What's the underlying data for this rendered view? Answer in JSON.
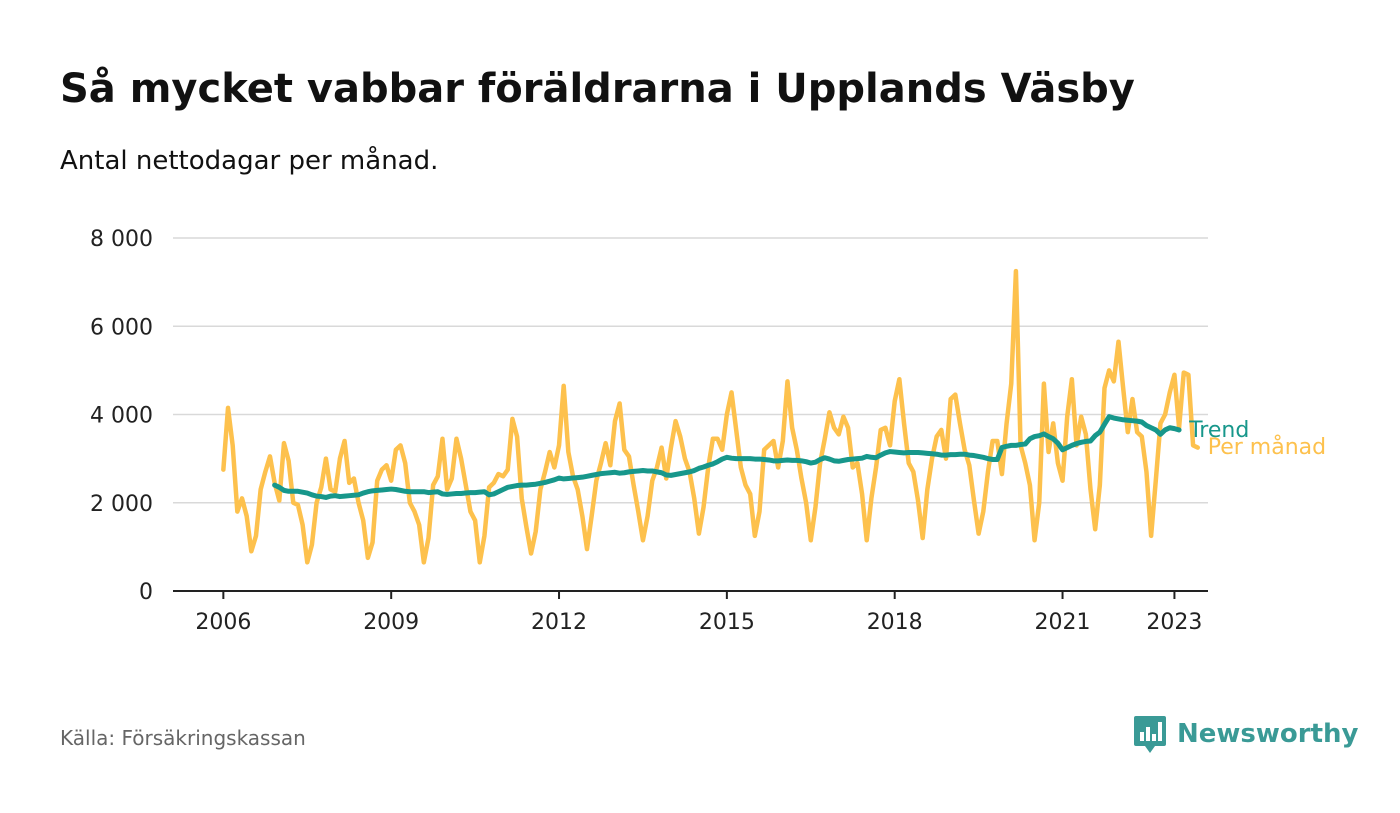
{
  "title": "Så mycket vabbar föräldrarna i Upplands Väsby",
  "subtitle": "Antal nettodagar per månad.",
  "source": "Källa: Försäkringskassan",
  "brand": "Newsworthy",
  "colors": {
    "monthly": "#fdc14d",
    "trend": "#17978b",
    "grid": "#d9d9d9",
    "axis": "#222222",
    "brand": "#3a9a96"
  },
  "chart_data": {
    "type": "line",
    "title": "Så mycket vabbar föräldrarna i Upplands Väsby",
    "subtitle": "Antal nettodagar per månad.",
    "xlabel": "",
    "ylabel": "",
    "x_start": "2006-01",
    "x_step": "month",
    "xlim": [
      2005.1,
      2023.6
    ],
    "ylim": [
      0,
      8000
    ],
    "yticks": [
      0,
      2000,
      4000,
      6000,
      8000
    ],
    "ytick_labels": [
      "0",
      "2 000",
      "4 000",
      "6 000",
      "8 000"
    ],
    "xticks": [
      2006,
      2009,
      2012,
      2015,
      2018,
      2021,
      2023
    ],
    "xtick_labels": [
      "2006",
      "2009",
      "2012",
      "2015",
      "2018",
      "2021",
      "2023"
    ],
    "grid": true,
    "series": [
      {
        "name": "Per månad",
        "x_start": "2006-01",
        "values": [
          2750,
          4150,
          3300,
          1800,
          2100,
          1700,
          900,
          1250,
          2300,
          2700,
          3050,
          2450,
          2050,
          3350,
          2950,
          2000,
          1950,
          1500,
          650,
          1050,
          2000,
          2350,
          3000,
          2300,
          2250,
          3000,
          3400,
          2450,
          2550,
          2000,
          1600,
          750,
          1100,
          2500,
          2750,
          2850,
          2500,
          3200,
          3300,
          2900,
          2000,
          1800,
          1500,
          650,
          1200,
          2400,
          2600,
          3450,
          2300,
          2550,
          3450,
          3000,
          2400,
          1800,
          1600,
          650,
          1250,
          2350,
          2450,
          2650,
          2600,
          2750,
          3900,
          3500,
          2100,
          1450,
          850,
          1350,
          2300,
          2700,
          3150,
          2800,
          3300,
          4650,
          3150,
          2600,
          2300,
          1700,
          950,
          1700,
          2500,
          2900,
          3350,
          2850,
          3850,
          4250,
          3200,
          3050,
          2400,
          1800,
          1150,
          1700,
          2500,
          2800,
          3250,
          2550,
          3250,
          3850,
          3500,
          3000,
          2700,
          2100,
          1300,
          1900,
          2800,
          3450,
          3450,
          3200,
          4000,
          4500,
          3650,
          2800,
          2400,
          2200,
          1250,
          1800,
          3200,
          3300,
          3400,
          2800,
          3400,
          4750,
          3700,
          3200,
          2550,
          2000,
          1150,
          1900,
          2900,
          3450,
          4050,
          3700,
          3550,
          3950,
          3700,
          2800,
          2900,
          2200,
          1150,
          2100,
          2800,
          3650,
          3700,
          3300,
          4300,
          4800,
          3800,
          2900,
          2700,
          2050,
          1200,
          2300,
          3000,
          3500,
          3650,
          3000,
          4350,
          4450,
          3800,
          3200,
          2850,
          2050,
          1300,
          1800,
          2700,
          3400,
          3400,
          2650,
          3800,
          4700,
          7250,
          3300,
          2900,
          2400,
          1150,
          2000,
          4700,
          3150,
          3800,
          2900,
          2500,
          3950,
          4800,
          3300,
          3950,
          3550,
          2300,
          1400,
          2400,
          4600,
          5000,
          4750,
          5650,
          4600,
          3600,
          4350,
          3600,
          3500,
          2700,
          1250,
          2500,
          3800,
          4000,
          4500,
          4900,
          3700,
          4950,
          4900,
          3300,
          3250
        ]
      },
      {
        "name": "Trend",
        "x_start": "2006-12",
        "values": [
          2400,
          2350,
          2280,
          2260,
          2260,
          2260,
          2240,
          2220,
          2180,
          2150,
          2140,
          2120,
          2150,
          2160,
          2140,
          2150,
          2160,
          2170,
          2180,
          2220,
          2250,
          2270,
          2280,
          2290,
          2300,
          2310,
          2300,
          2280,
          2260,
          2250,
          2250,
          2250,
          2250,
          2230,
          2240,
          2250,
          2200,
          2190,
          2200,
          2210,
          2210,
          2220,
          2230,
          2230,
          2240,
          2250,
          2180,
          2200,
          2250,
          2300,
          2350,
          2370,
          2390,
          2400,
          2400,
          2410,
          2420,
          2440,
          2460,
          2490,
          2520,
          2560,
          2540,
          2550,
          2560,
          2570,
          2580,
          2600,
          2620,
          2640,
          2660,
          2670,
          2680,
          2690,
          2670,
          2680,
          2700,
          2710,
          2720,
          2730,
          2720,
          2720,
          2700,
          2680,
          2630,
          2620,
          2640,
          2660,
          2680,
          2700,
          2730,
          2780,
          2810,
          2850,
          2880,
          2930,
          2990,
          3030,
          3010,
          3000,
          3000,
          3000,
          3000,
          2990,
          2990,
          2980,
          2970,
          2950,
          2950,
          2960,
          2970,
          2960,
          2960,
          2950,
          2930,
          2900,
          2920,
          2980,
          3020,
          2990,
          2950,
          2940,
          2960,
          2980,
          2990,
          3000,
          3010,
          3050,
          3030,
          3020,
          3080,
          3130,
          3160,
          3150,
          3140,
          3130,
          3140,
          3140,
          3140,
          3130,
          3120,
          3110,
          3100,
          3080,
          3080,
          3090,
          3090,
          3100,
          3100,
          3080,
          3070,
          3050,
          3030,
          3000,
          2980,
          2980,
          3250,
          3280,
          3300,
          3300,
          3320,
          3330,
          3450,
          3500,
          3520,
          3560,
          3500,
          3450,
          3350,
          3200,
          3250,
          3300,
          3340,
          3370,
          3390,
          3400,
          3520,
          3600,
          3780,
          3950,
          3920,
          3900,
          3880,
          3870,
          3860,
          3850,
          3830,
          3750,
          3700,
          3650,
          3550,
          3650,
          3700,
          3680,
          3650
        ]
      }
    ],
    "series_labels": [
      "Trend",
      "Per månad"
    ]
  }
}
